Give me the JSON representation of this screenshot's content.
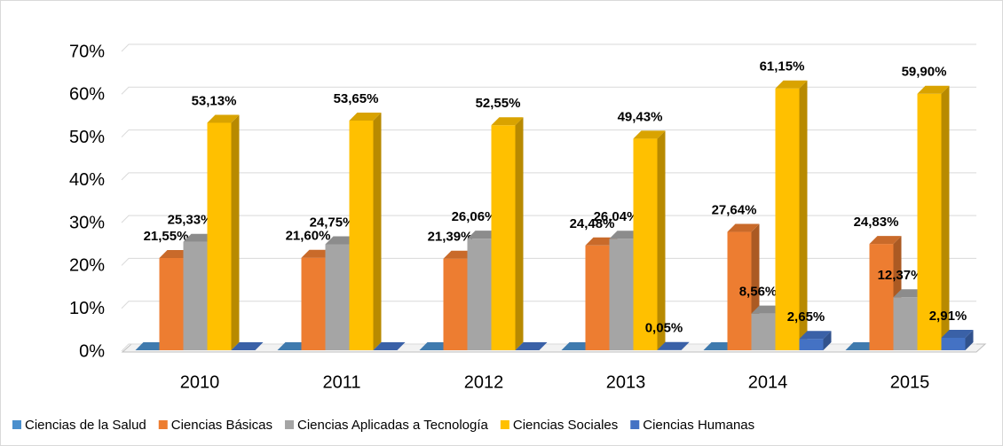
{
  "chart_data": {
    "type": "bar3d",
    "categories": [
      "2010",
      "2011",
      "2012",
      "2013",
      "2014",
      "2015"
    ],
    "series": [
      {
        "name": "Ciencias de la Salud",
        "color": "#4a8fcd",
        "values": [
          0,
          0,
          0,
          0,
          0,
          0
        ]
      },
      {
        "name": "Ciencias Básicas",
        "color": "#ed7d31",
        "values": [
          21.55,
          21.6,
          21.39,
          24.48,
          27.64,
          24.83
        ],
        "value_labels": [
          "21,55%",
          "21,60%",
          "21,39%",
          "24,48%",
          "27,64%",
          "24,83%"
        ]
      },
      {
        "name": "Ciencias Aplicadas a Tecnología",
        "color": "#a5a5a5",
        "values": [
          25.33,
          24.75,
          26.06,
          26.04,
          8.56,
          12.37
        ],
        "value_labels": [
          "25,33%",
          "24,75%",
          "26,06%",
          "26,04%",
          "8,56%",
          "12,37%"
        ]
      },
      {
        "name": "Ciencias Sociales",
        "color": "#ffc000",
        "values": [
          53.13,
          53.65,
          52.55,
          49.43,
          61.15,
          59.9
        ],
        "value_labels": [
          "53,13%",
          "53,65%",
          "52,55%",
          "49,43%",
          "61,15%",
          "59,90%"
        ]
      },
      {
        "name": "Ciencias Humanas",
        "color": "#4472c4",
        "values": [
          0,
          0,
          0,
          0.05,
          2.65,
          2.91
        ],
        "value_labels": [
          null,
          null,
          null,
          "0,05%",
          "2,65%",
          "2,91%"
        ]
      }
    ],
    "ylim": [
      0,
      70
    ],
    "yticks": [
      {
        "value": 0,
        "label": "0%"
      },
      {
        "value": 10,
        "label": "10%"
      },
      {
        "value": 20,
        "label": "20%"
      },
      {
        "value": 30,
        "label": "30%"
      },
      {
        "value": 40,
        "label": "40%"
      },
      {
        "value": 50,
        "label": "50%"
      },
      {
        "value": 60,
        "label": "60%"
      },
      {
        "value": 70,
        "label": "70%"
      }
    ],
    "grid": true,
    "legend": "bottom"
  }
}
